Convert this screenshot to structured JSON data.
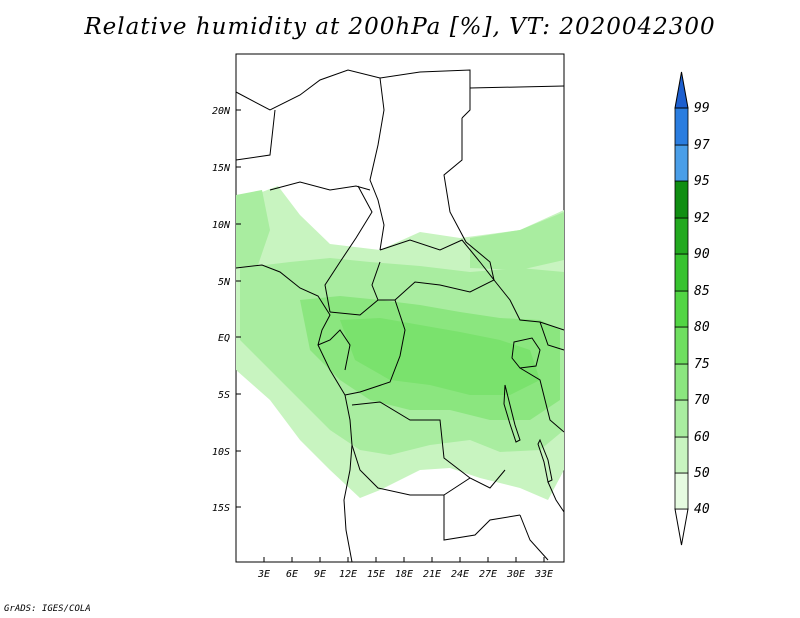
{
  "title": "Relative humidity at 200hPa [%], VT: 2020042300",
  "footer": "GrADS: IGES/COLA",
  "map": {
    "lat_labels": [
      "20N",
      "15N",
      "10N",
      "5N",
      "EQ",
      "5S",
      "10S",
      "15S"
    ],
    "lon_labels": [
      "3E",
      "6E",
      "9E",
      "12E",
      "15E",
      "18E",
      "21E",
      "24E",
      "27E",
      "30E",
      "33E"
    ]
  },
  "colorbar": {
    "levels": [
      {
        "value": "40",
        "color": "#e6fbe1"
      },
      {
        "value": "50",
        "color": "#c8f4c0"
      },
      {
        "value": "60",
        "color": "#a9eda0"
      },
      {
        "value": "70",
        "color": "#8be67f"
      },
      {
        "value": "75",
        "color": "#6fdf60"
      },
      {
        "value": "80",
        "color": "#52d544"
      },
      {
        "value": "85",
        "color": "#37c32f"
      },
      {
        "value": "90",
        "color": "#22a91f"
      },
      {
        "value": "92",
        "color": "#108e12"
      },
      {
        "value": "95",
        "color": "#4a9ee8"
      },
      {
        "value": "97",
        "color": "#2a7de0"
      },
      {
        "value": "99",
        "color": "#1d5fcf"
      }
    ]
  }
}
